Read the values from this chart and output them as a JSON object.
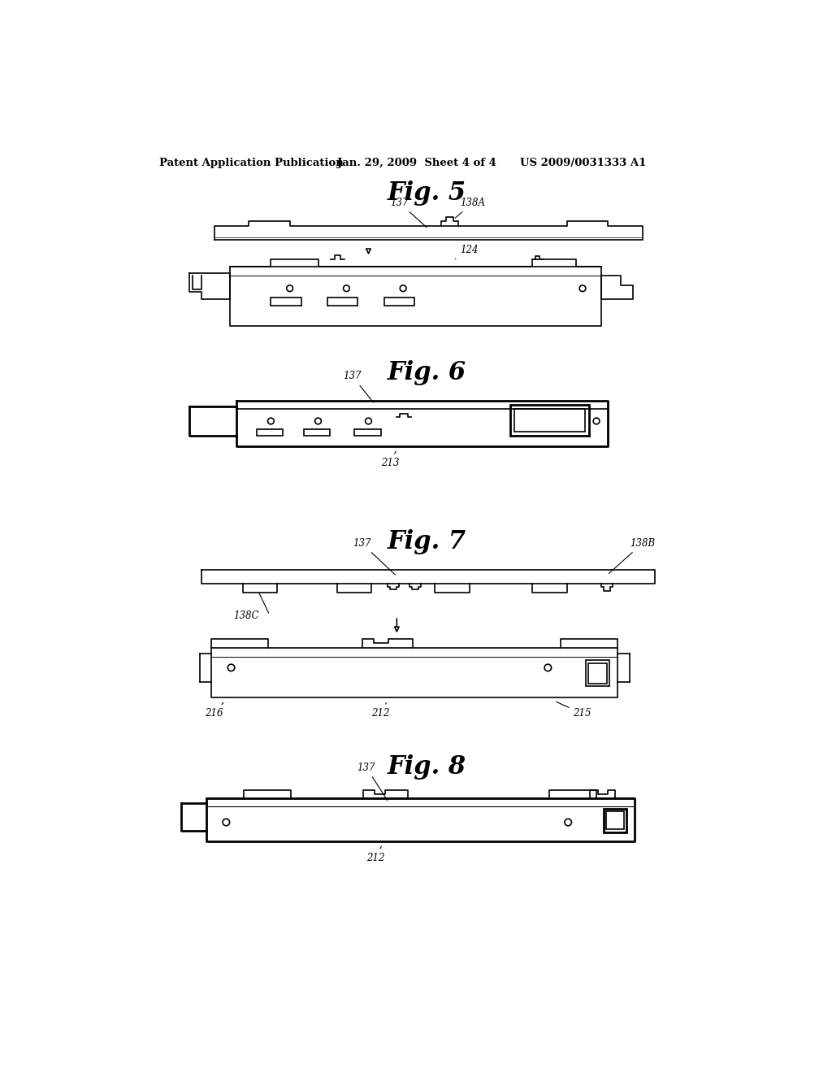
{
  "background": "#ffffff",
  "header_left": "Patent Application Publication",
  "header_center": "Jan. 29, 2009  Sheet 4 of 4",
  "header_right": "US 2009/0031333 A1"
}
